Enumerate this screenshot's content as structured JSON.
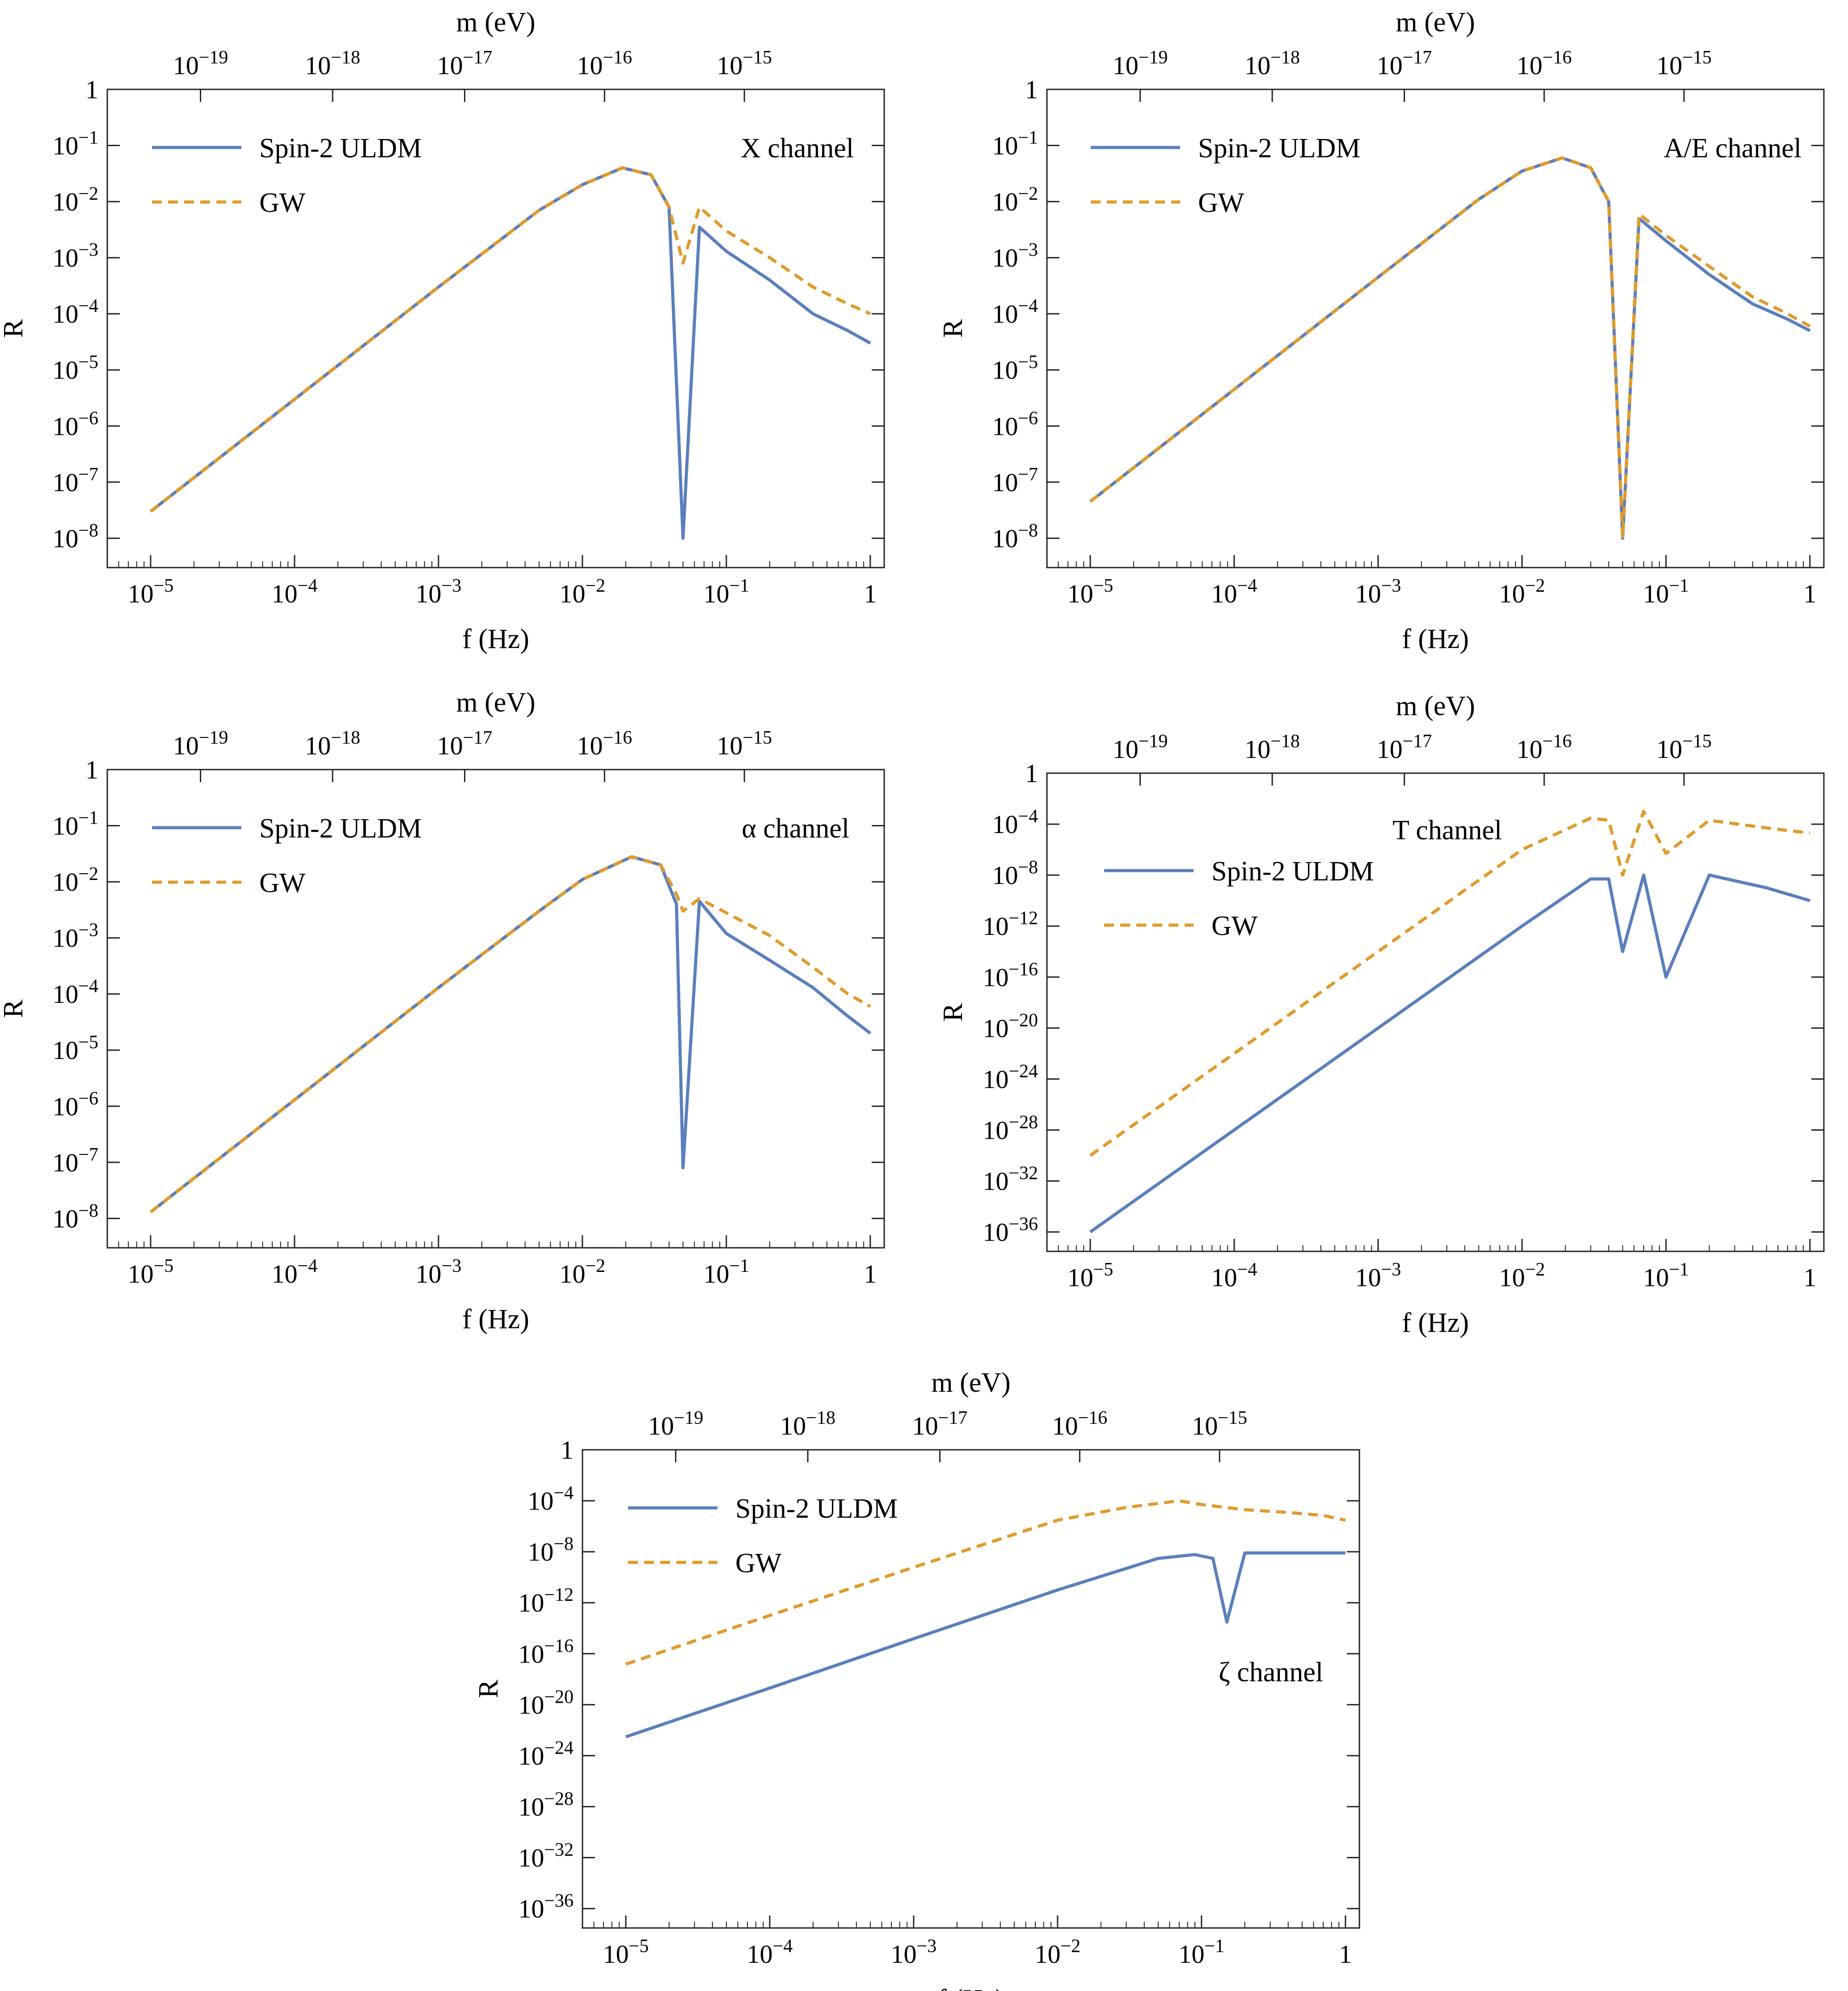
{
  "figure": {
    "series_styles": {
      "Spin-2 ULDM": {
        "color": "#5b7fbc",
        "dash": "solid"
      },
      "GW": {
        "color": "#e09a2c",
        "dash": "dashed"
      }
    },
    "top_axis_title": "m (eV)",
    "top_axis_ticks": [
      "10^-19",
      "10^-18",
      "10^-17",
      "10^-16",
      "10^-15"
    ]
  },
  "chart_data": [
    {
      "type": "line",
      "title": "X channel",
      "annotation": "X channel",
      "xlabel": "f (Hz)",
      "ylabel": "R",
      "top_xlabel": "m (eV)",
      "xscale": "log",
      "yscale": "log",
      "xlim": [
        5e-06,
        1.25
      ],
      "ylim": [
        3e-09,
        1.0
      ],
      "x_ticks": [
        "10^-5",
        "10^-4",
        "10^-3",
        "10^-2",
        "10^-1",
        "1"
      ],
      "y_ticks": [
        "10^-8",
        "10^-7",
        "10^-6",
        "10^-5",
        "10^-4",
        "10^-3",
        "10^-2",
        "10^-1",
        "1"
      ],
      "top_ticks": [
        "10^-19",
        "10^-18",
        "10^-17",
        "10^-16",
        "10^-15"
      ],
      "legend": [
        "Spin-2 ULDM",
        "GW"
      ],
      "legend_position": "top-left",
      "series": [
        {
          "name": "Spin-2 ULDM",
          "x": [
            1e-05,
            0.0001,
            0.001,
            0.005,
            0.01,
            0.019,
            0.03,
            0.04,
            0.05,
            0.065,
            0.1,
            0.2,
            0.4,
            0.7,
            1.0
          ],
          "values": [
            3e-08,
            3e-06,
            0.0003,
            0.007,
            0.02,
            0.04,
            0.03,
            0.008,
            1e-08,
            0.0035,
            0.0013,
            0.0004,
            0.0001,
            5e-05,
            3e-05
          ]
        },
        {
          "name": "GW",
          "x": [
            1e-05,
            0.0001,
            0.001,
            0.005,
            0.01,
            0.019,
            0.03,
            0.04,
            0.05,
            0.065,
            0.1,
            0.2,
            0.4,
            0.7,
            1.0
          ],
          "values": [
            3e-08,
            3e-06,
            0.0003,
            0.007,
            0.02,
            0.04,
            0.03,
            0.008,
            0.0008,
            0.008,
            0.003,
            0.001,
            0.0003,
            0.00015,
            0.0001
          ]
        }
      ]
    },
    {
      "type": "line",
      "title": "A/E channel",
      "annotation": "A/E channel",
      "xlabel": "f (Hz)",
      "ylabel": "R",
      "top_xlabel": "m (eV)",
      "xscale": "log",
      "yscale": "log",
      "xlim": [
        5e-06,
        1.25
      ],
      "ylim": [
        3e-09,
        1.0
      ],
      "x_ticks": [
        "10^-5",
        "10^-4",
        "10^-3",
        "10^-2",
        "10^-1",
        "1"
      ],
      "y_ticks": [
        "10^-8",
        "10^-7",
        "10^-6",
        "10^-5",
        "10^-4",
        "10^-3",
        "10^-2",
        "10^-1",
        "1"
      ],
      "top_ticks": [
        "10^-19",
        "10^-18",
        "10^-17",
        "10^-16",
        "10^-15"
      ],
      "legend": [
        "Spin-2 ULDM",
        "GW"
      ],
      "legend_position": "top-left",
      "series": [
        {
          "name": "Spin-2 ULDM",
          "x": [
            1e-05,
            0.0001,
            0.001,
            0.005,
            0.01,
            0.019,
            0.03,
            0.04,
            0.05,
            0.065,
            0.1,
            0.2,
            0.4,
            0.7,
            1.0
          ],
          "values": [
            4.5e-08,
            4.5e-06,
            0.00045,
            0.011,
            0.035,
            0.06,
            0.04,
            0.01,
            1e-08,
            0.005,
            0.002,
            0.0005,
            0.00015,
            8e-05,
            5e-05
          ]
        },
        {
          "name": "GW",
          "x": [
            1e-05,
            0.0001,
            0.001,
            0.005,
            0.01,
            0.019,
            0.03,
            0.04,
            0.05,
            0.065,
            0.1,
            0.2,
            0.4,
            0.7,
            1.0
          ],
          "values": [
            4.5e-08,
            4.5e-06,
            0.00045,
            0.011,
            0.035,
            0.06,
            0.04,
            0.01,
            1e-08,
            0.006,
            0.0025,
            0.0007,
            0.0002,
            0.0001,
            6e-05
          ]
        }
      ]
    },
    {
      "type": "line",
      "title": "α channel",
      "annotation": "α channel",
      "xlabel": "f (Hz)",
      "ylabel": "R",
      "top_xlabel": "m (eV)",
      "xscale": "log",
      "yscale": "log",
      "xlim": [
        5e-06,
        1.25
      ],
      "ylim": [
        3e-09,
        1.0
      ],
      "x_ticks": [
        "10^-5",
        "10^-4",
        "10^-3",
        "10^-2",
        "10^-1",
        "1"
      ],
      "y_ticks": [
        "10^-8",
        "10^-7",
        "10^-6",
        "10^-5",
        "10^-4",
        "10^-3",
        "10^-2",
        "10^-1",
        "1"
      ],
      "top_ticks": [
        "10^-19",
        "10^-18",
        "10^-17",
        "10^-16",
        "10^-15"
      ],
      "legend": [
        "Spin-2 ULDM",
        "GW"
      ],
      "legend_position": "top-left",
      "series": [
        {
          "name": "Spin-2 ULDM",
          "x": [
            1e-05,
            0.0001,
            0.001,
            0.005,
            0.01,
            0.022,
            0.035,
            0.045,
            0.05,
            0.065,
            0.1,
            0.2,
            0.4,
            0.7,
            1.0
          ],
          "values": [
            1.3e-08,
            1.3e-06,
            0.00013,
            0.003,
            0.011,
            0.028,
            0.02,
            0.004,
            8e-08,
            0.0045,
            0.0012,
            0.0004,
            0.00013,
            4e-05,
            2e-05
          ]
        },
        {
          "name": "GW",
          "x": [
            1e-05,
            0.0001,
            0.001,
            0.005,
            0.01,
            0.022,
            0.035,
            0.045,
            0.05,
            0.065,
            0.1,
            0.2,
            0.4,
            0.7,
            1.0
          ],
          "values": [
            1.3e-08,
            1.3e-06,
            0.00013,
            0.003,
            0.011,
            0.028,
            0.02,
            0.006,
            0.003,
            0.005,
            0.0028,
            0.0011,
            0.0003,
            0.0001,
            6e-05
          ]
        }
      ]
    },
    {
      "type": "line",
      "title": "T channel",
      "annotation": "T channel",
      "xlabel": "f (Hz)",
      "ylabel": "R",
      "top_xlabel": "m (eV)",
      "xscale": "log",
      "yscale": "log",
      "xlim": [
        5e-06,
        1.25
      ],
      "ylim": [
        3e-38,
        1.0
      ],
      "x_ticks": [
        "10^-5",
        "10^-4",
        "10^-3",
        "10^-2",
        "10^-1",
        "1"
      ],
      "y_ticks": [
        "10^-36",
        "10^-32",
        "10^-28",
        "10^-24",
        "10^-20",
        "10^-16",
        "10^-12",
        "10^-8",
        "10^-4",
        "1"
      ],
      "top_ticks": [
        "10^-19",
        "10^-18",
        "10^-17",
        "10^-16",
        "10^-15"
      ],
      "legend": [
        "Spin-2 ULDM",
        "GW"
      ],
      "legend_position": "upper-middle-left",
      "series": [
        {
          "name": "Spin-2 ULDM",
          "x": [
            1e-05,
            0.0001,
            0.001,
            0.01,
            0.03,
            0.04,
            0.05,
            0.07,
            0.1,
            0.2,
            0.5,
            1.0
          ],
          "values": [
            1e-36,
            1e-28,
            1e-20,
            1e-12,
            5e-09,
            5e-09,
            1e-14,
            1e-08,
            1e-16,
            1e-08,
            1e-09,
            1e-10
          ]
        },
        {
          "name": "GW",
          "x": [
            1e-05,
            0.0001,
            0.001,
            0.01,
            0.03,
            0.04,
            0.05,
            0.07,
            0.1,
            0.2,
            0.5,
            1.0
          ],
          "values": [
            1e-30,
            1e-22,
            1e-14,
            1e-06,
            0.0003,
            0.0002,
            1e-08,
            0.001,
            5e-07,
            0.0002,
            5e-05,
            2e-05
          ]
        }
      ]
    },
    {
      "type": "line",
      "title": "ζ channel",
      "annotation": "ζ channel",
      "xlabel": "f (Hz)",
      "ylabel": "R",
      "top_xlabel": "m (eV)",
      "xscale": "log",
      "yscale": "log",
      "xlim": [
        5e-06,
        1.25
      ],
      "ylim": [
        3e-38,
        1.0
      ],
      "x_ticks": [
        "10^-5",
        "10^-4",
        "10^-3",
        "10^-2",
        "10^-1",
        "1"
      ],
      "y_ticks": [
        "10^-36",
        "10^-32",
        "10^-28",
        "10^-24",
        "10^-20",
        "10^-16",
        "10^-12",
        "10^-8",
        "10^-4",
        "1"
      ],
      "top_ticks": [
        "10^-19",
        "10^-18",
        "10^-17",
        "10^-16",
        "10^-15"
      ],
      "legend": [
        "Spin-2 ULDM",
        "GW"
      ],
      "legend_position": "top-left",
      "series": [
        {
          "name": "Spin-2 ULDM",
          "x": [
            1e-05,
            0.0001,
            0.001,
            0.01,
            0.05,
            0.09,
            0.12,
            0.15,
            0.2,
            0.3,
            0.5,
            1.0
          ],
          "values": [
            3e-23,
            2e-19,
            1.5e-15,
            1e-11,
            3e-09,
            6e-09,
            3e-09,
            3e-14,
            8e-09,
            8e-09,
            8e-09,
            8e-09
          ]
        },
        {
          "name": "GW",
          "x": [
            1e-05,
            0.0001,
            0.001,
            0.01,
            0.03,
            0.07,
            0.1,
            0.2,
            0.4,
            0.7,
            1.0
          ],
          "values": [
            1.5e-17,
            1e-13,
            6e-10,
            3e-06,
            3e-05,
            0.0001,
            5e-05,
            2e-05,
            1.2e-05,
            7e-06,
            3e-06
          ]
        }
      ]
    }
  ]
}
